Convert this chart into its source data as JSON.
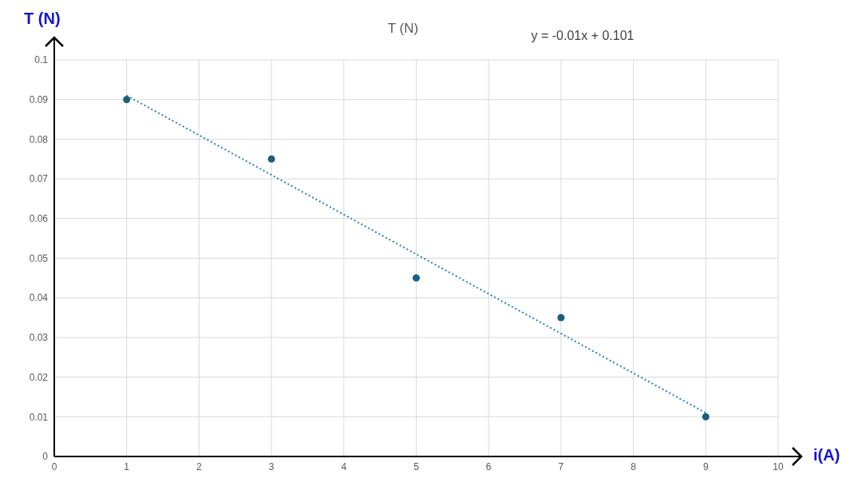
{
  "chart_data": {
    "type": "scatter",
    "title": "T (N)",
    "xlabel": "i(A)",
    "ylabel": "T (N)",
    "annotations": [
      "y = -0.01x + 0.101"
    ],
    "xlim": [
      0,
      10
    ],
    "xticks": [
      0,
      1,
      2,
      3,
      4,
      5,
      6,
      7,
      8,
      9,
      10
    ],
    "ylim": [
      0,
      0.1
    ],
    "yticks": [
      0,
      0.01,
      0.02,
      0.03,
      0.04,
      0.05,
      0.06,
      0.07,
      0.08,
      0.09,
      0.1
    ],
    "grid": true,
    "series": [
      {
        "color": "#1b5e7e",
        "marker": "circle",
        "x": [
          1,
          3,
          5,
          7,
          9
        ],
        "values": [
          0.09,
          0.075,
          0.045,
          0.035,
          0.01
        ]
      },
      {
        "type": "line",
        "color": "#2e7fb0",
        "marker": "none",
        "line_style": "dotted",
        "x": [
          1,
          9
        ],
        "values": [
          0.091,
          0.011
        ]
      }
    ]
  }
}
